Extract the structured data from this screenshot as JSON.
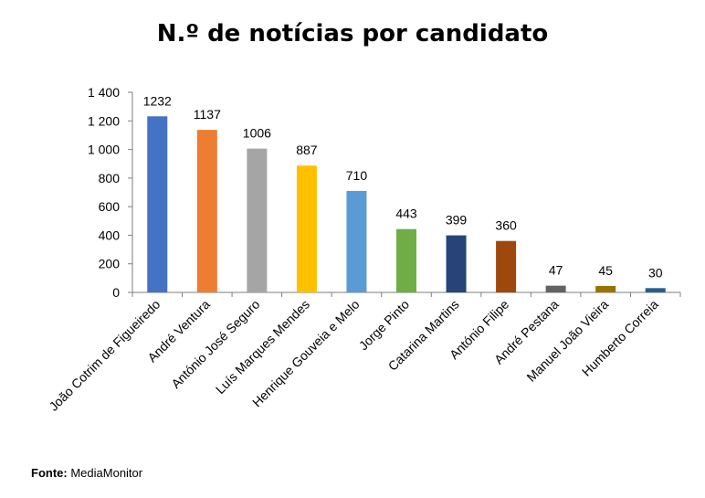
{
  "chart_data": {
    "type": "bar",
    "title": "N.º de notícias por candidato",
    "xlabel": "",
    "ylabel": "",
    "ylim": [
      0,
      1400
    ],
    "yticks": [
      0,
      200,
      400,
      600,
      800,
      1000,
      1200,
      1400
    ],
    "ytick_labels": [
      "0",
      "200",
      "400",
      "600",
      "800",
      "1 000",
      "1 200",
      "1 400"
    ],
    "grid": false,
    "categories": [
      "João Cotrim de Figueiredo",
      "André Ventura",
      "António José Seguro",
      "Luís Marques Mendes",
      "Henrique Gouveia e Melo",
      "Jorge Pinto",
      "Catarina Martins",
      "António Filipe",
      "André Pestana",
      "Manuel João Vieira",
      "Humberto Correia"
    ],
    "values": [
      1232,
      1137,
      1006,
      887,
      710,
      443,
      399,
      360,
      47,
      45,
      30
    ],
    "colors": [
      "#4472C4",
      "#ED7D31",
      "#A5A5A5",
      "#FFC000",
      "#5B9BD5",
      "#70AD47",
      "#264478",
      "#9E480E",
      "#636363",
      "#997300",
      "#255E91"
    ]
  },
  "source": {
    "label": "Fonte",
    "separator": ":",
    "text": " MediaMonitor"
  }
}
